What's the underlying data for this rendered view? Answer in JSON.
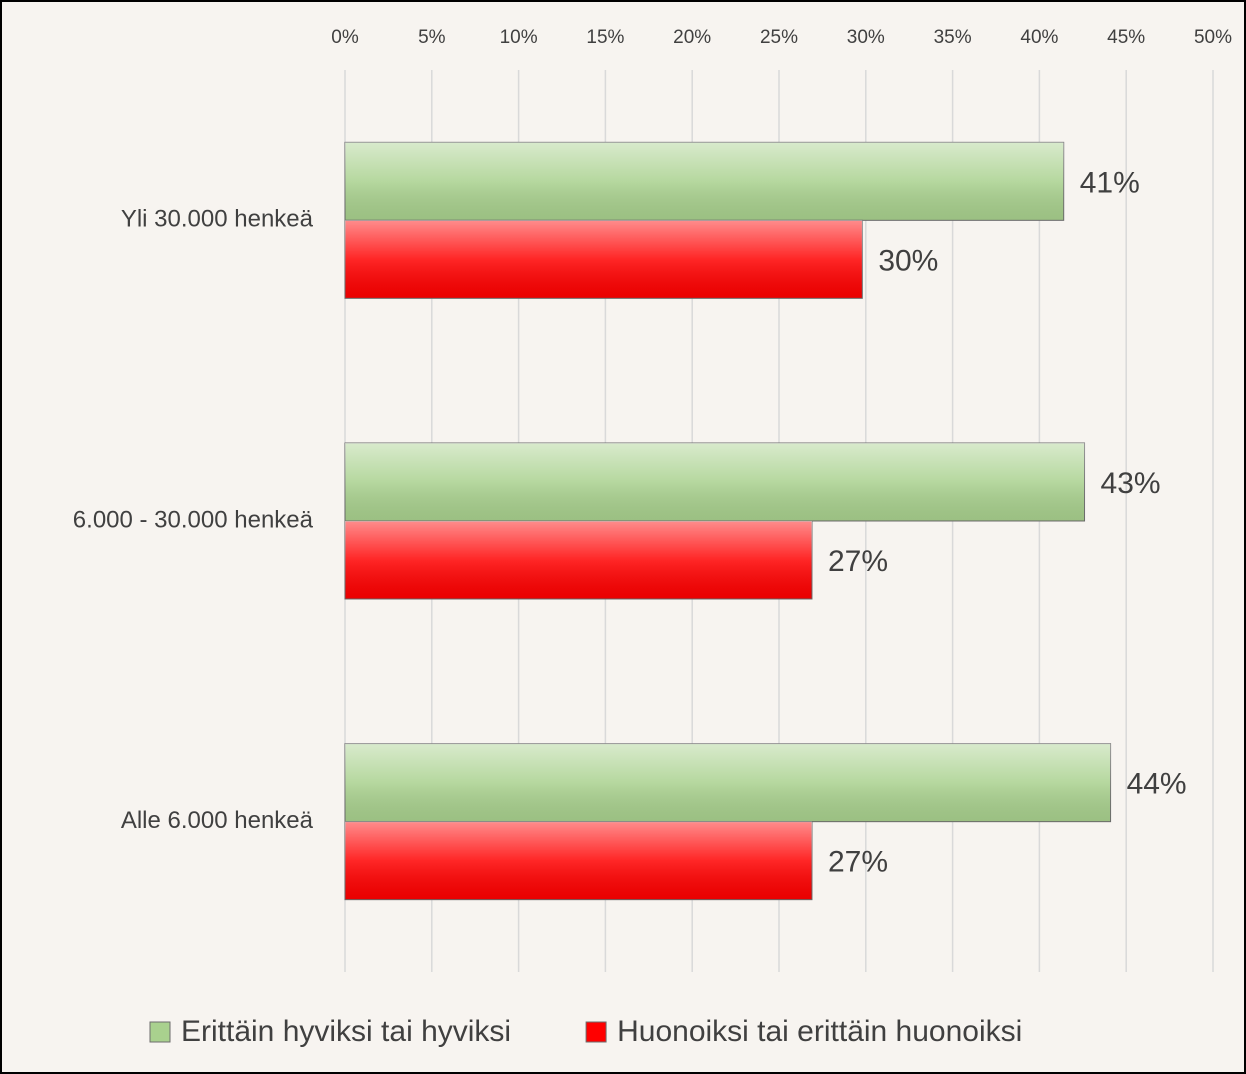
{
  "chart_data": {
    "type": "hbar",
    "categories": [
      "Yli 30.000 henkeä",
      "6.000 - 30.000 henkeä",
      "Alle 6.000 henkeä"
    ],
    "series": [
      {
        "name": "Erittäin hyviksi tai hyviksi",
        "color": "#a9d18e",
        "values": [
          41.4,
          42.6,
          44.1
        ],
        "value_labels": [
          "41%",
          "43%",
          "44%"
        ]
      },
      {
        "name": "Huonoiksi tai erittäin huonoiksi",
        "color": "#ff0000",
        "values": [
          29.8,
          26.9,
          26.9
        ],
        "value_labels": [
          "30%",
          "27%",
          "27%"
        ]
      }
    ],
    "xlim": [
      0,
      50
    ],
    "xticks": [
      {
        "value": 0,
        "label": "0%"
      },
      {
        "value": 5,
        "label": "5%"
      },
      {
        "value": 10,
        "label": "10%"
      },
      {
        "value": 15,
        "label": "15%"
      },
      {
        "value": 20,
        "label": "20%"
      },
      {
        "value": 25,
        "label": "25%"
      },
      {
        "value": 30,
        "label": "30%"
      },
      {
        "value": 35,
        "label": "35%"
      },
      {
        "value": 40,
        "label": "40%"
      },
      {
        "value": 45,
        "label": "45%"
      },
      {
        "value": 50,
        "label": "50%"
      }
    ],
    "grid": true,
    "legend": "bottom"
  }
}
